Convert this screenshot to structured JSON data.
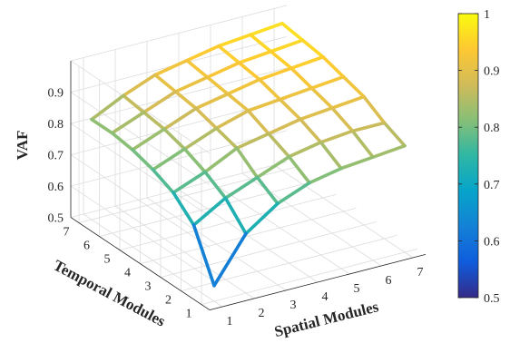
{
  "chart_data": {
    "type": "surface",
    "zlabel": "VAF",
    "xlabel": "Spatial Modules",
    "ylabel": "Temporal Modules",
    "x_ticks": [
      "1",
      "2",
      "3",
      "4",
      "5",
      "6",
      "7"
    ],
    "y_ticks": [
      "1",
      "2",
      "3",
      "4",
      "5",
      "6",
      "7"
    ],
    "z_ticks": [
      "0.5",
      "0.6",
      "0.7",
      "0.8",
      "0.9"
    ],
    "zlim": [
      0.5,
      1.0
    ],
    "grid": true,
    "colormap": "parula",
    "colorbar": {
      "ticks": [
        "0.5",
        "0.6",
        "0.7",
        "0.8",
        "0.9",
        "1"
      ],
      "range": [
        0.5,
        1.0
      ]
    },
    "x": [
      1,
      2,
      3,
      4,
      5,
      6,
      7
    ],
    "y": [
      1,
      2,
      3,
      4,
      5,
      6,
      7
    ],
    "z": [
      [
        0.55,
        0.69,
        0.76,
        0.8,
        0.82,
        0.83,
        0.84
      ],
      [
        0.7,
        0.76,
        0.8,
        0.84,
        0.86,
        0.87,
        0.87
      ],
      [
        0.76,
        0.8,
        0.85,
        0.87,
        0.89,
        0.9,
        0.91
      ],
      [
        0.79,
        0.83,
        0.87,
        0.9,
        0.91,
        0.92,
        0.93
      ],
      [
        0.81,
        0.85,
        0.89,
        0.91,
        0.93,
        0.94,
        0.95
      ],
      [
        0.82,
        0.86,
        0.9,
        0.92,
        0.94,
        0.95,
        0.96
      ],
      [
        0.82,
        0.87,
        0.91,
        0.93,
        0.95,
        0.96,
        0.97
      ]
    ]
  }
}
